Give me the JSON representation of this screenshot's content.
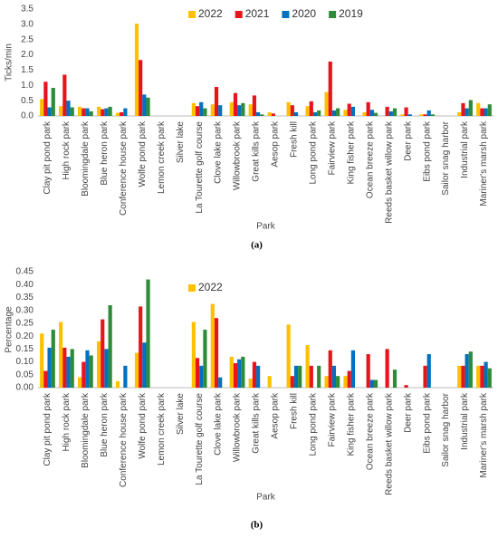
{
  "chart_data": [
    {
      "type": "bar",
      "ylabel": "Ticks/min",
      "xlabel": "Park",
      "caption": "(a)",
      "grid": false,
      "legend": "top",
      "ylim": [
        0,
        3.5
      ],
      "yticks": [
        {
          "value": 0,
          "label": "0.0"
        },
        0.5,
        {
          "value": 1,
          "label": "1.0"
        },
        1.5,
        {
          "value": 2,
          "label": "2.0"
        },
        2.5,
        {
          "value": 3,
          "label": "3.0"
        },
        3.5
      ],
      "categories": [
        "Clay pit pond park",
        "High rock park",
        "Bloomingdale park",
        "Blue heron park",
        "Conference house park",
        "Wolfe pond park",
        "Lemon creek park",
        "Silver lake",
        "La Tourette golf course",
        "Clove lake park",
        "Willowbrook park",
        "Great kills park",
        "Aesop park",
        "Fresh kill",
        "Long pond park",
        "Fairview park",
        "King fisher park",
        "Ocean breeze park",
        "Reeds basket willow park",
        "Deer park",
        "Eibs pond park",
        "Sailor snag harbor",
        "Industrial park",
        "Mariner's marsh park"
      ],
      "series": [
        {
          "name": "2022",
          "color": "#FFC000",
          "values": [
            0.55,
            0.32,
            0.3,
            0.3,
            0.1,
            3.02,
            0,
            0,
            0.42,
            0.38,
            0.45,
            0.38,
            0.12,
            0.45,
            0.32,
            0.78,
            0.2,
            0.12,
            0,
            0.05,
            0.05,
            0,
            0.12,
            0.42
          ]
        },
        {
          "name": "2021",
          "color": "#E8141B",
          "values": [
            1.12,
            1.35,
            0.25,
            0.22,
            0.12,
            1.83,
            0,
            0,
            0.32,
            0.95,
            0.75,
            0.67,
            0.08,
            0.35,
            0.48,
            1.78,
            0.4,
            0.45,
            0.3,
            0.28,
            0.05,
            0,
            0.42,
            0.25
          ]
        },
        {
          "name": "2020",
          "color": "#0070C0",
          "values": [
            0.28,
            0.5,
            0.25,
            0.25,
            0.25,
            0.7,
            0,
            0,
            0.45,
            0.35,
            0.35,
            0.12,
            0,
            0.12,
            0.12,
            0.18,
            0.3,
            0.2,
            0.15,
            0.05,
            0.18,
            0,
            0.25,
            0.25
          ]
        },
        {
          "name": "2019",
          "color": "#2E8B3A",
          "values": [
            0.92,
            0.28,
            0.15,
            0.3,
            0,
            0.6,
            0,
            0,
            0.25,
            0,
            0.42,
            0.05,
            0,
            0,
            0.18,
            0.25,
            0,
            0.1,
            0.25,
            0,
            0.05,
            0,
            0.52,
            0.38
          ]
        }
      ]
    },
    {
      "type": "bar",
      "ylabel": "Percentage",
      "xlabel": "Park",
      "caption": "(b)",
      "grid": false,
      "legend": "top",
      "ylim": [
        0,
        0.45
      ],
      "yticks": [
        {
          "value": 0,
          "label": "0.00"
        },
        0.05,
        {
          "value": 0.1,
          "label": "0.10"
        },
        0.15,
        {
          "value": 0.2,
          "label": "0.20"
        },
        0.25,
        {
          "value": 0.3,
          "label": "0.30"
        },
        0.35,
        {
          "value": 0.4,
          "label": "0.40"
        },
        0.45
      ],
      "categories": [
        "Clay pit pond park",
        "High rock park",
        "Bloomingdale park",
        "Blue heron park",
        "Conference house park",
        "Wolfe pond park",
        "Lemon creek park",
        "Silver lake",
        "La Tourette golf course",
        "Clove lake park",
        "Willowbrook park",
        "Great kills park",
        "Aesop park",
        "Fresh kill",
        "Long pond park",
        "Fairview park",
        "King fisher park",
        "Ocean breeze park",
        "Reeds basket willow park",
        "Deer park",
        "Eibs pond park",
        "Sailor snag harbor",
        "Industrial park",
        "Mariner's marsh park"
      ],
      "series": [
        {
          "name": "2022",
          "color": "#FFC000",
          "values": [
            0.21,
            0.255,
            0.04,
            0.18,
            0.025,
            0.135,
            0,
            0,
            0.255,
            0.325,
            0.12,
            0.035,
            0.045,
            0.245,
            0.165,
            0.045,
            0.045,
            0,
            0,
            0,
            0,
            0,
            0.085,
            0.085
          ]
        },
        {
          "color": "#E8141B",
          "values": [
            0.065,
            0.155,
            0.1,
            0.265,
            0,
            0.315,
            0,
            0,
            0.115,
            0.27,
            0.095,
            0.1,
            0,
            0.045,
            0.085,
            0.145,
            0.065,
            0.13,
            0.15,
            0.01,
            0.085,
            0,
            0.085,
            0.085
          ]
        },
        {
          "color": "#0070C0",
          "values": [
            0.155,
            0.12,
            0.145,
            0.15,
            0.085,
            0.175,
            0,
            0,
            0.085,
            0.04,
            0.11,
            0.085,
            0,
            0.085,
            0,
            0.085,
            0.145,
            0.03,
            0,
            0,
            0.13,
            0,
            0.13,
            0.1
          ]
        },
        {
          "color": "#2E8B3A",
          "values": [
            0.225,
            0.15,
            0.125,
            0.32,
            0,
            0.42,
            0,
            0,
            0.225,
            0,
            0.12,
            0,
            0,
            0.085,
            0.085,
            0.045,
            0,
            0.03,
            0.07,
            0,
            0,
            0,
            0.14,
            0.075
          ]
        }
      ]
    }
  ]
}
